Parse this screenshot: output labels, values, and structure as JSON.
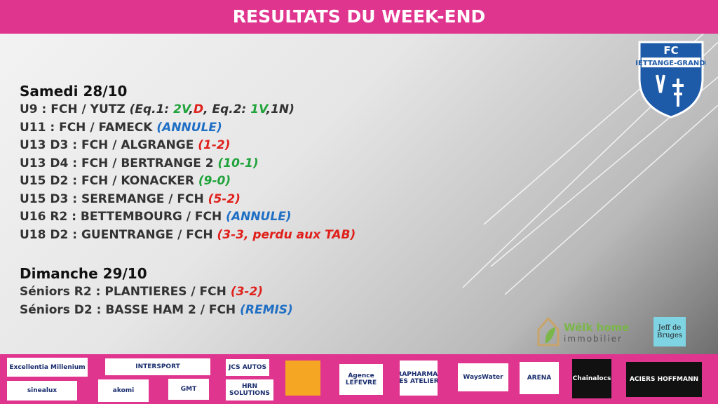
{
  "header": {
    "title": "RESULTATS DU WEEK-END"
  },
  "club_logo": {
    "top": "FC",
    "name": "HETTANGE-GRANDE"
  },
  "sections": [
    {
      "title": "Samedi 28/10",
      "matches": [
        {
          "team": "U9 : FCH / YUTZ",
          "result": [
            {
              "text": "(Eq.1: ",
              "color": "#333333"
            },
            {
              "text": "2V",
              "color": "#1fa33a"
            },
            {
              "text": ",",
              "color": "#333333"
            },
            {
              "text": "D",
              "color": "#e0201b"
            },
            {
              "text": ", Eq.2: ",
              "color": "#333333"
            },
            {
              "text": "1V",
              "color": "#1fa33a"
            },
            {
              "text": ",1N)",
              "color": "#333333"
            }
          ]
        },
        {
          "team": "U11 : FCH / FAMECK",
          "result": [
            {
              "text": "(ANNULE)",
              "color": "#1f6fc5"
            }
          ]
        },
        {
          "team": "U13 D3 : FCH / ALGRANGE",
          "result": [
            {
              "text": "(1-2)",
              "color": "#e0201b"
            }
          ]
        },
        {
          "team": "U13 D4 : FCH / BERTRANGE 2",
          "result": [
            {
              "text": "(10-1)",
              "color": "#1fa33a"
            }
          ]
        },
        {
          "team": "U15 D2 : FCH / KONACKER",
          "result": [
            {
              "text": "(9-0)",
              "color": "#1fa33a"
            }
          ]
        },
        {
          "team": "U15 D3 : SEREMANGE / FCH",
          "result": [
            {
              "text": "(5-2)",
              "color": "#e0201b"
            }
          ]
        },
        {
          "team": "U16 R2 : BETTEMBOURG / FCH",
          "result": [
            {
              "text": "(ANNULE)",
              "color": "#1f6fc5"
            }
          ]
        },
        {
          "team": "U18 D2 : GUENTRANGE / FCH",
          "result": [
            {
              "text": "(3-3, perdu aux TAB)",
              "color": "#e0201b"
            }
          ]
        }
      ]
    },
    {
      "title": "Dimanche 29/10",
      "matches": [
        {
          "team": "Séniors R2 : PLANTIERES / FCH",
          "result": [
            {
              "text": "(3-2)",
              "color": "#e0201b"
            }
          ]
        },
        {
          "team": "Séniors D2 : BASSE HAM 2 / FCH",
          "result": [
            {
              "text": "(REMIS)",
              "color": "#1f6fc5"
            }
          ]
        }
      ]
    }
  ],
  "partners": [
    "Wëlk home",
    "immobilier",
    "Jeff de Bruges"
  ],
  "sponsors": [
    "Excellentia Millenium",
    "sinealux",
    "INTERSPORT",
    "akomi",
    "GMT",
    "JCS AUTOS",
    "HRN SOLUTIONS",
    "Agence LEFEVRE",
    "PARAPHARMACIE DES ATELIERS",
    "WaysWater",
    "ARENA",
    "Chainalocs",
    "ACIERS HOFFMANN"
  ]
}
